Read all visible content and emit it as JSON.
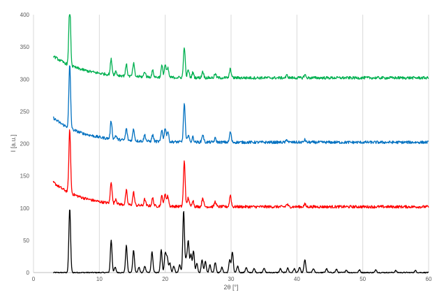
{
  "chart_data": {
    "type": "line",
    "xlabel": "2θ [°]",
    "ylabel": "I [a.u.]",
    "xlim": [
      0,
      60
    ],
    "ylim": [
      0,
      400
    ],
    "x_ticks": [
      0,
      10,
      20,
      30,
      40,
      50,
      60
    ],
    "y_ticks": [
      0,
      50,
      100,
      150,
      200,
      250,
      300,
      350,
      400
    ],
    "grid": "vertical-major",
    "legend": "none",
    "x_range": [
      3,
      60
    ],
    "series": [
      {
        "color": "#000000",
        "baseline": 0,
        "noise": 0.8,
        "peaks": [
          [
            5.5,
            100
          ],
          [
            11.8,
            50
          ],
          [
            12.4,
            8
          ],
          [
            14.1,
            42
          ],
          [
            15.2,
            35
          ],
          [
            16.0,
            8
          ],
          [
            16.9,
            10
          ],
          [
            18.0,
            32
          ],
          [
            19.4,
            35
          ],
          [
            20.0,
            30
          ],
          [
            20.3,
            24
          ],
          [
            20.7,
            15
          ],
          [
            21.3,
            10
          ],
          [
            22.2,
            12
          ],
          [
            22.8,
            96
          ],
          [
            23.2,
            20
          ],
          [
            23.5,
            48
          ],
          [
            23.9,
            28
          ],
          [
            24.3,
            34
          ],
          [
            24.8,
            14
          ],
          [
            25.6,
            20
          ],
          [
            26.1,
            18
          ],
          [
            26.8,
            12
          ],
          [
            27.6,
            16
          ],
          [
            28.6,
            8
          ],
          [
            29.8,
            20
          ],
          [
            30.2,
            32
          ],
          [
            31.0,
            10
          ],
          [
            32.3,
            8
          ],
          [
            33.5,
            6
          ],
          [
            35.0,
            7
          ],
          [
            37.5,
            6
          ],
          [
            38.6,
            7
          ],
          [
            39.6,
            6
          ],
          [
            40.4,
            8
          ],
          [
            41.2,
            20
          ],
          [
            42.5,
            6
          ],
          [
            44.5,
            6
          ],
          [
            46.0,
            5
          ],
          [
            47.5,
            4
          ],
          [
            49.5,
            4
          ],
          [
            52.0,
            4
          ],
          [
            55.0,
            3
          ],
          [
            58.0,
            3
          ]
        ]
      },
      {
        "color": "#ff0000",
        "baseline": 102,
        "decay": 38,
        "noise": 2.2,
        "peaks": [
          [
            5.5,
            98
          ],
          [
            11.8,
            34
          ],
          [
            12.5,
            8
          ],
          [
            14.1,
            22
          ],
          [
            15.2,
            20
          ],
          [
            16.9,
            10
          ],
          [
            18.1,
            12
          ],
          [
            19.5,
            16
          ],
          [
            20.0,
            20
          ],
          [
            20.4,
            16
          ],
          [
            22.9,
            70
          ],
          [
            23.5,
            14
          ],
          [
            24.2,
            10
          ],
          [
            25.7,
            14
          ],
          [
            27.6,
            8
          ],
          [
            29.9,
            18
          ],
          [
            38.5,
            4
          ],
          [
            41.2,
            4
          ]
        ]
      },
      {
        "color": "#0070c0",
        "baseline": 202,
        "decay": 38,
        "noise": 2.2,
        "peaks": [
          [
            5.5,
            98
          ],
          [
            11.8,
            28
          ],
          [
            12.5,
            6
          ],
          [
            14.1,
            18
          ],
          [
            15.2,
            18
          ],
          [
            16.9,
            10
          ],
          [
            18.1,
            10
          ],
          [
            19.5,
            18
          ],
          [
            20.0,
            22
          ],
          [
            20.4,
            16
          ],
          [
            22.9,
            60
          ],
          [
            23.5,
            12
          ],
          [
            24.2,
            8
          ],
          [
            25.7,
            12
          ],
          [
            27.6,
            6
          ],
          [
            29.9,
            16
          ],
          [
            38.5,
            4
          ],
          [
            41.2,
            4
          ]
        ]
      },
      {
        "color": "#00b050",
        "baseline": 302,
        "decay": 34,
        "noise": 2.2,
        "peaks": [
          [
            5.5,
            98
          ],
          [
            11.8,
            24
          ],
          [
            12.5,
            6
          ],
          [
            14.1,
            18
          ],
          [
            15.2,
            20
          ],
          [
            16.9,
            8
          ],
          [
            18.1,
            10
          ],
          [
            19.5,
            18
          ],
          [
            20.0,
            20
          ],
          [
            20.4,
            14
          ],
          [
            22.9,
            48
          ],
          [
            23.5,
            12
          ],
          [
            24.2,
            8
          ],
          [
            25.7,
            10
          ],
          [
            27.6,
            6
          ],
          [
            29.9,
            14
          ],
          [
            38.5,
            4
          ],
          [
            41.2,
            5
          ]
        ]
      }
    ]
  }
}
